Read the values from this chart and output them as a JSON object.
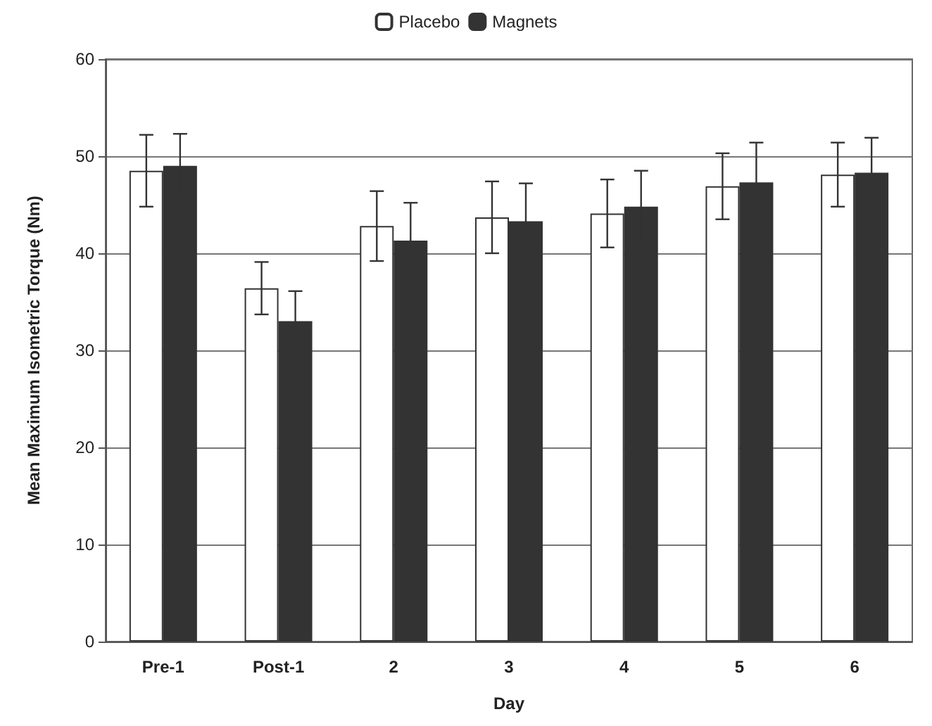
{
  "chart_data": {
    "type": "bar",
    "xlabel": "Day",
    "ylabel": "Mean Maximum Isometric Torque (Nm)",
    "categories": [
      "Pre-1",
      "Post-1",
      "2",
      "3",
      "4",
      "5",
      "6"
    ],
    "series": [
      {
        "name": "Placebo",
        "color": "#ffffff",
        "values": [
          48.5,
          36.4,
          42.8,
          43.7,
          44.1,
          46.9,
          48.1
        ],
        "errors": [
          3.7,
          2.7,
          3.6,
          3.7,
          3.5,
          3.4,
          3.3
        ]
      },
      {
        "name": "Magnets",
        "color": "#333333",
        "values": [
          49,
          33,
          41.3,
          43.3,
          44.8,
          47.3,
          48.3
        ],
        "errors": [
          3.3,
          3.1,
          3.9,
          3.9,
          3.7,
          4.1,
          3.6
        ]
      }
    ],
    "ylim": [
      0,
      60
    ],
    "yticks": [
      0,
      10,
      20,
      30,
      40,
      50,
      60
    ],
    "grid": "y",
    "legend": "top"
  }
}
